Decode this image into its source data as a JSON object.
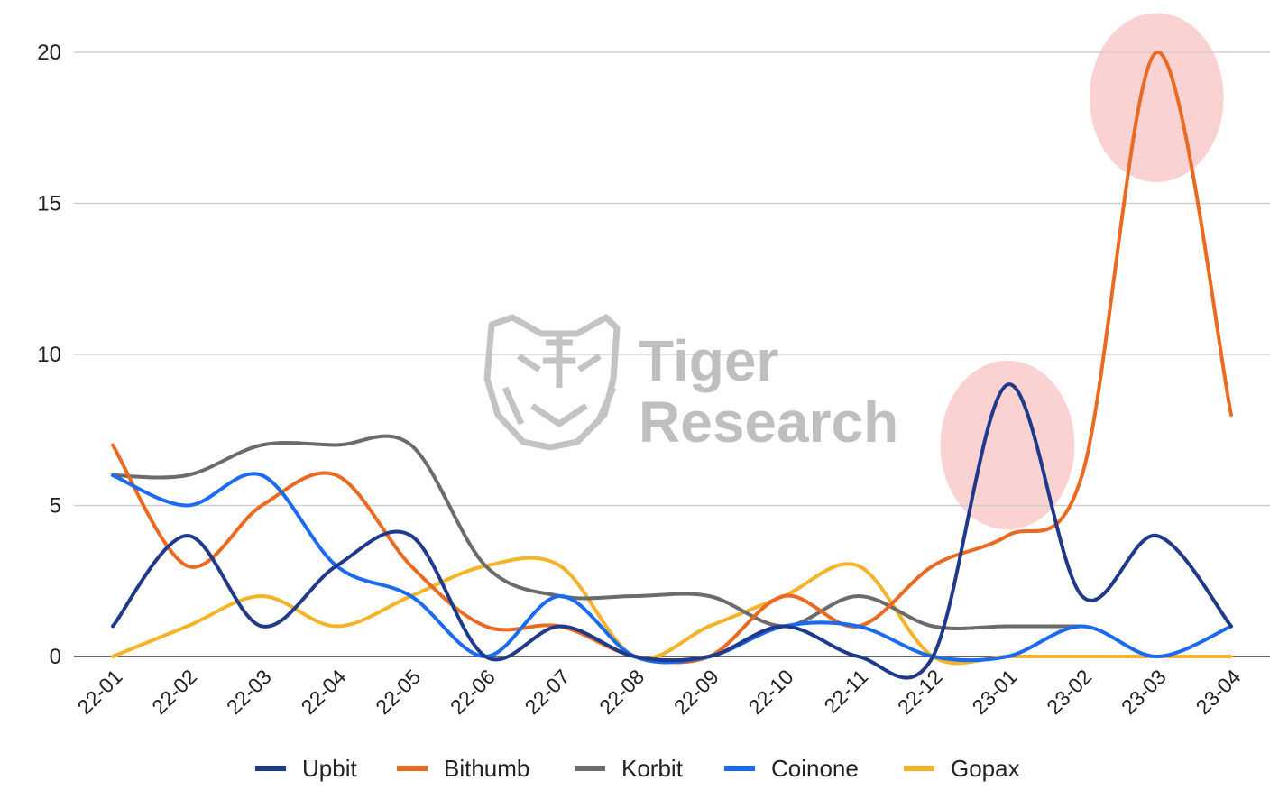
{
  "chart_data": {
    "type": "line",
    "title": "",
    "xlabel": "",
    "ylabel": "",
    "categories": [
      "22-01",
      "22-02",
      "22-03",
      "22-04",
      "22-05",
      "22-06",
      "22-07",
      "22-08",
      "22-09",
      "22-10",
      "22-11",
      "22-12",
      "23-01",
      "23-02",
      "23-03",
      "23-04"
    ],
    "ylim": [
      0,
      20
    ],
    "yticks": [
      0,
      5,
      10,
      15,
      20
    ],
    "grid": true,
    "legend_position": "bottom",
    "series": [
      {
        "name": "Upbit",
        "color": "#1f3a8a",
        "values": [
          1,
          4,
          1,
          3,
          4,
          0,
          1,
          0,
          0,
          1,
          0,
          0,
          9,
          2,
          4,
          1
        ]
      },
      {
        "name": "Bithumb",
        "color": "#ea6a22",
        "values": [
          7,
          3,
          5,
          6,
          3,
          1,
          1,
          0,
          0,
          2,
          1,
          3,
          4,
          6,
          20,
          8
        ]
      },
      {
        "name": "Korbit",
        "color": "#6b6b6b",
        "values": [
          6,
          6,
          7,
          7,
          7,
          3,
          2,
          2,
          2,
          1,
          2,
          1,
          1,
          1,
          null,
          null
        ]
      },
      {
        "name": "Coinone",
        "color": "#1a6bf0",
        "values": [
          6,
          5,
          6,
          3,
          2,
          0,
          2,
          0,
          0,
          1,
          1,
          0,
          0,
          1,
          0,
          1
        ]
      },
      {
        "name": "Gopax",
        "color": "#f5b32a",
        "values": [
          0,
          1,
          2,
          1,
          2,
          3,
          3,
          0,
          1,
          2,
          3,
          0,
          0,
          0,
          0,
          0
        ]
      }
    ],
    "highlights": [
      {
        "category": "23-01",
        "value": 7,
        "rx_units": 0.9,
        "ry_value": 2.8
      },
      {
        "category": "23-03",
        "value": 18.5,
        "rx_units": 0.9,
        "ry_value": 2.8
      }
    ],
    "highlight_color": "#f8b4b4",
    "watermark": {
      "line1": "Tiger",
      "line2": "Research"
    }
  }
}
